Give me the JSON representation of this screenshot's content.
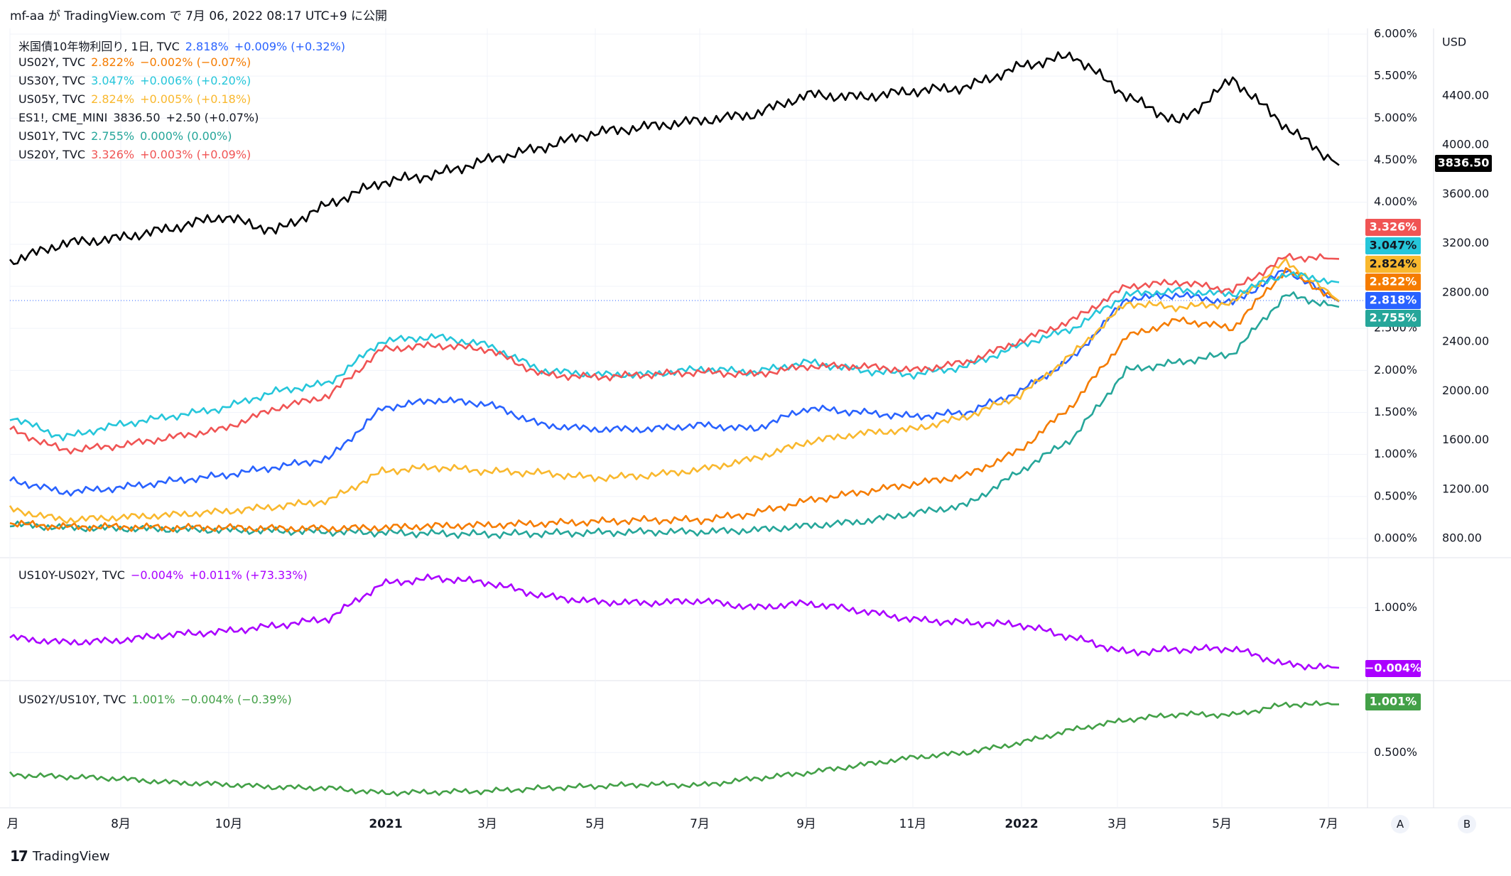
{
  "header": {
    "publisher": "mf-aa",
    "on": "が",
    "site": "TradingView.com",
    "date_prefix": "で",
    "date": "7月 06, 2022 08:17 UTC+9",
    "published": "に公開"
  },
  "footer": {
    "brand": "TradingView",
    "btn_a": "A",
    "btn_b": "B"
  },
  "colors": {
    "es": "#000000",
    "us20y": "#f05454",
    "us30y": "#26c6da",
    "us05y": "#f9b82e",
    "us02y": "#f57c00",
    "us10y": "#2962ff",
    "us01y": "#26a69a",
    "spread": "#aa00ff",
    "ratio": "#43a047",
    "grid": "#f0f3fa"
  },
  "legend_main": [
    {
      "name": "米国債10年物利回り, 1日, TVC",
      "value": "2.818%",
      "change": "+0.009% (+0.32%)",
      "color": "#2962ff"
    },
    {
      "name": "US02Y, TVC",
      "value": "2.822%",
      "change": "−0.002% (−0.07%)",
      "color": "#f57c00"
    },
    {
      "name": "US30Y, TVC",
      "value": "3.047%",
      "change": "+0.006% (+0.20%)",
      "color": "#26c6da"
    },
    {
      "name": "US05Y, TVC",
      "value": "2.824%",
      "change": "+0.005% (+0.18%)",
      "color": "#f9b82e"
    },
    {
      "name": "ES1!, CME_MINI",
      "value": "3836.50",
      "change": "+2.50 (+0.07%)",
      "color": "#131722"
    },
    {
      "name": "US01Y, TVC",
      "value": "2.755%",
      "change": "0.000% (0.00%)",
      "color": "#26a69a"
    },
    {
      "name": "US20Y, TVC",
      "value": "3.326%",
      "change": "+0.003% (+0.09%)",
      "color": "#f05454"
    }
  ],
  "legend_spread": {
    "name": "US10Y-US02Y, TVC",
    "value": "−0.004%",
    "change": "+0.011% (+73.33%)",
    "color": "#aa00ff"
  },
  "legend_ratio": {
    "name": "US02Y/US10Y, TVC",
    "value": "1.001%",
    "change": "−0.004% (−0.39%)",
    "color": "#43a047"
  },
  "chart_data": {
    "type": "line",
    "x_ticks": [
      "月",
      "8月",
      "10月",
      "2021",
      "3月",
      "5月",
      "7月",
      "9月",
      "11月",
      "2022",
      "3月",
      "5月",
      "7月"
    ],
    "pane1": {
      "yield_axis": {
        "ticks": [
          "0.000%",
          "0.500%",
          "1.000%",
          "1.500%",
          "2.000%",
          "2.500%",
          "3.000%",
          "3.500%",
          "4.000%",
          "4.500%",
          "5.000%",
          "5.500%",
          "6.000%"
        ],
        "ylim": [
          0,
          6
        ]
      },
      "price_axis": {
        "unit": "USD",
        "ticks": [
          "800.00",
          "1200.00",
          "1600.00",
          "2000.00",
          "2400.00",
          "2800.00",
          "3200.00",
          "3600.00",
          "4000.00",
          "4400.00"
        ],
        "ylim": [
          600,
          4800
        ]
      },
      "last_labels": [
        {
          "series": "ES1!",
          "label": "3836.50"
        },
        {
          "series": "US20Y",
          "label": "3.326%"
        },
        {
          "series": "US30Y",
          "label": "3.047%"
        },
        {
          "series": "US05Y",
          "label": "2.824%"
        },
        {
          "series": "US02Y",
          "label": "2.822%"
        },
        {
          "series": "US10Y",
          "label": "2.818%"
        },
        {
          "series": "US01Y",
          "label": "2.755%"
        }
      ],
      "x_index": [
        0,
        1,
        2,
        3,
        4,
        5,
        6,
        7,
        8,
        9,
        10,
        11,
        12,
        13,
        14,
        15,
        16,
        17,
        18,
        19,
        20,
        21,
        22,
        23,
        24,
        25
      ],
      "series": [
        {
          "name": "ES1!",
          "axis": "price",
          "values": [
            3050,
            3200,
            3240,
            3320,
            3420,
            3300,
            3520,
            3700,
            3760,
            3880,
            3980,
            4100,
            4150,
            4200,
            4250,
            4410,
            4390,
            4440,
            4470,
            4640,
            4730,
            4400,
            4180,
            4540,
            4150,
            3836.5
          ]
        },
        {
          "name": "US20Y",
          "axis": "yield",
          "values": [
            1.3,
            1.05,
            1.1,
            1.2,
            1.3,
            1.55,
            1.7,
            2.25,
            2.3,
            2.25,
            1.95,
            1.92,
            1.95,
            1.98,
            1.95,
            2.05,
            2.05,
            2.0,
            2.1,
            2.35,
            2.6,
            3.0,
            3.05,
            2.95,
            3.35,
            3.326
          ]
        },
        {
          "name": "US30Y",
          "axis": "yield",
          "values": [
            1.45,
            1.2,
            1.35,
            1.45,
            1.55,
            1.75,
            1.85,
            2.35,
            2.4,
            2.3,
            2.0,
            1.95,
            1.95,
            2.02,
            1.98,
            2.1,
            2.0,
            1.95,
            2.05,
            2.3,
            2.5,
            2.9,
            2.95,
            2.9,
            3.15,
            3.047
          ]
        },
        {
          "name": "US05Y",
          "axis": "yield",
          "values": [
            0.35,
            0.22,
            0.25,
            0.28,
            0.32,
            0.38,
            0.45,
            0.8,
            0.85,
            0.8,
            0.78,
            0.72,
            0.75,
            0.82,
            0.95,
            1.15,
            1.25,
            1.3,
            1.45,
            1.7,
            2.2,
            2.8,
            2.75,
            2.8,
            3.3,
            2.824
          ]
        },
        {
          "name": "US02Y",
          "axis": "yield",
          "values": [
            0.18,
            0.14,
            0.14,
            0.13,
            0.13,
            0.12,
            0.12,
            0.13,
            0.15,
            0.16,
            0.18,
            0.2,
            0.22,
            0.22,
            0.3,
            0.45,
            0.55,
            0.65,
            0.75,
            1.05,
            1.6,
            2.4,
            2.6,
            2.5,
            3.2,
            2.822
          ]
        },
        {
          "name": "US10Y",
          "axis": "yield",
          "values": [
            0.7,
            0.55,
            0.6,
            0.68,
            0.75,
            0.85,
            0.95,
            1.55,
            1.65,
            1.6,
            1.35,
            1.3,
            1.3,
            1.35,
            1.3,
            1.55,
            1.5,
            1.45,
            1.5,
            1.75,
            2.15,
            2.85,
            2.9,
            2.8,
            3.2,
            2.818
          ]
        },
        {
          "name": "US01Y",
          "axis": "yield",
          "values": [
            0.17,
            0.13,
            0.12,
            0.11,
            0.1,
            0.09,
            0.08,
            0.07,
            0.06,
            0.05,
            0.06,
            0.07,
            0.08,
            0.08,
            0.1,
            0.15,
            0.2,
            0.3,
            0.4,
            0.8,
            1.2,
            2.0,
            2.1,
            2.2,
            2.9,
            2.755
          ]
        }
      ]
    },
    "pane2": {
      "yticks": [
        "1.000%"
      ],
      "ylim": [
        -0.1,
        1.6
      ],
      "last_label": "−0.004%",
      "series": [
        {
          "name": "US10Y-US02Y",
          "values": [
            0.5,
            0.42,
            0.45,
            0.55,
            0.6,
            0.7,
            0.82,
            1.4,
            1.5,
            1.42,
            1.2,
            1.1,
            1.08,
            1.12,
            1.0,
            1.08,
            0.95,
            0.8,
            0.75,
            0.72,
            0.5,
            0.25,
            0.3,
            0.32,
            0.05,
            -0.004
          ]
        }
      ]
    },
    "pane3": {
      "yticks": [
        "0.500%"
      ],
      "ylim": [
        0.0,
        1.1
      ],
      "last_label": "1.001%",
      "series": [
        {
          "name": "US02Y/US10Y",
          "values": [
            0.27,
            0.25,
            0.23,
            0.19,
            0.17,
            0.14,
            0.13,
            0.08,
            0.09,
            0.1,
            0.13,
            0.15,
            0.17,
            0.16,
            0.23,
            0.29,
            0.37,
            0.45,
            0.5,
            0.6,
            0.74,
            0.84,
            0.9,
            0.89,
            1.0,
            1.001
          ]
        }
      ]
    }
  }
}
